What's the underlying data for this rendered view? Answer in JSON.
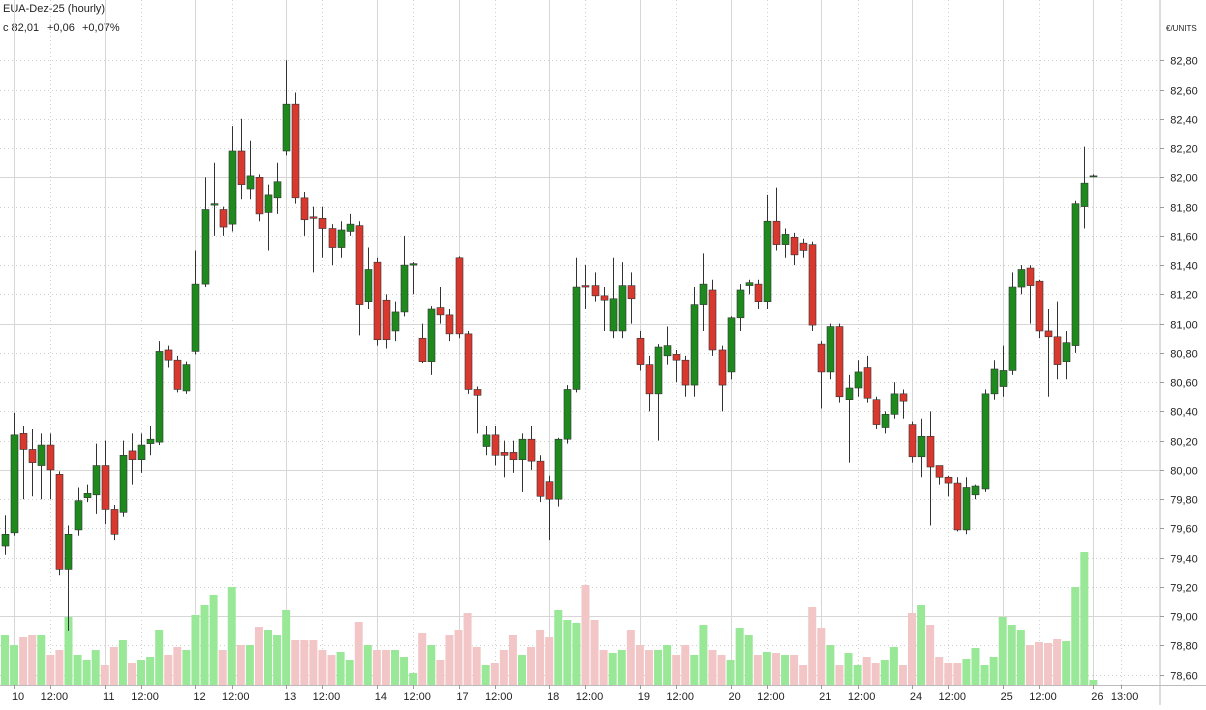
{
  "chart_data": {
    "type": "candlestick",
    "title": "EUA-Dez-25 (hourly)",
    "last_label": "c 82,01",
    "change_label": "+0,06",
    "change_pct_label": "+0,07%",
    "unit_label": "€/UNITS",
    "up_color": "#1e8a1e",
    "down_color": "#d9382e",
    "volume_up_color": "#98e898",
    "volume_down_color": "#f2c6c6",
    "change_color": "#2aa52a",
    "grid": true,
    "categories": [
      null,
      "10",
      null,
      null,
      null,
      "12:00",
      null,
      null,
      null,
      null,
      null,
      "11",
      null,
      null,
      null,
      "12:00",
      null,
      null,
      null,
      null,
      null,
      "12",
      null,
      null,
      null,
      "12:00",
      null,
      null,
      null,
      null,
      null,
      "13",
      null,
      null,
      null,
      "12:00",
      null,
      null,
      null,
      null,
      null,
      "14",
      null,
      null,
      null,
      "12:00",
      null,
      null,
      null,
      null,
      "17",
      null,
      null,
      null,
      "12:00",
      null,
      null,
      null,
      null,
      null,
      "18",
      null,
      null,
      null,
      "12:00",
      null,
      null,
      null,
      null,
      null,
      "19",
      null,
      null,
      null,
      "12:00",
      null,
      null,
      null,
      null,
      null,
      "20",
      null,
      null,
      null,
      "12:00",
      null,
      null,
      null,
      null,
      null,
      "21",
      null,
      null,
      null,
      "12:00",
      null,
      null,
      null,
      null,
      null,
      "24",
      null,
      null,
      null,
      "12:00",
      null,
      null,
      null,
      null,
      null,
      "25",
      null,
      null,
      null,
      "12:00",
      null,
      null,
      null,
      null,
      null,
      "26",
      null,
      null,
      "13:00"
    ],
    "open": [
      79.48,
      79.57,
      80.25,
      80.14,
      80.03,
      80.17,
      79.97,
      79.32,
      79.59,
      79.81,
      79.83,
      80.03,
      79.73,
      79.71,
      80.13,
      80.07,
      80.18,
      80.19,
      80.82,
      80.75,
      80.54,
      80.81,
      81.27,
      81.81,
      81.78,
      81.68,
      82.18,
      81.92,
      82.0,
      81.76,
      81.86,
      82.18,
      82.5,
      81.86,
      81.73,
      81.72,
      81.65,
      81.52,
      81.63,
      81.67,
      81.15,
      81.42,
      81.16,
      80.95,
      81.08,
      81.4,
      80.9,
      80.74,
      81.11,
      81.06,
      81.45,
      80.93,
      80.55,
      80.16,
      80.24,
      80.12,
      80.12,
      80.07,
      80.21,
      80.06,
      79.92,
      79.8,
      80.21,
      80.55,
      81.26,
      81.26,
      81.19,
      80.95,
      80.95,
      81.26,
      80.9,
      80.72,
      80.52,
      80.78,
      80.79,
      80.75,
      80.58,
      81.13,
      81.23,
      80.82,
      80.67,
      81.04,
      81.26,
      81.27,
      81.15,
      81.7,
      81.54,
      81.59,
      81.55,
      81.54,
      80.86,
      80.67,
      80.98,
      80.48,
      80.56,
      80.7,
      80.48,
      80.29,
      80.38,
      80.52,
      80.31,
      80.09,
      80.23,
      80.03,
      79.95,
      79.91,
      79.59,
      79.83,
      79.87,
      80.52,
      80.57,
      80.68,
      81.25,
      81.38,
      81.29,
      80.95,
      80.91,
      80.74,
      80.85,
      81.8,
      82.01,
      null,
      null,
      null
    ],
    "high": [
      79.69,
      80.39,
      80.3,
      80.28,
      80.25,
      80.25,
      79.99,
      79.62,
      79.88,
      79.9,
      80.18,
      80.2,
      79.76,
      80.2,
      80.25,
      80.25,
      80.3,
      80.88,
      80.85,
      80.78,
      80.74,
      81.5,
      82.0,
      82.1,
      81.8,
      82.35,
      82.4,
      82.25,
      82.02,
      81.95,
      82.1,
      82.8,
      82.58,
      81.9,
      81.8,
      81.8,
      81.68,
      81.7,
      81.75,
      81.7,
      81.52,
      81.45,
      81.2,
      81.15,
      81.6,
      81.42,
      81.0,
      81.12,
      81.25,
      81.1,
      81.46,
      80.95,
      80.57,
      80.3,
      80.3,
      80.2,
      80.2,
      80.25,
      80.3,
      80.1,
      79.96,
      80.22,
      80.58,
      81.45,
      81.4,
      81.35,
      81.25,
      81.45,
      81.42,
      81.35,
      80.95,
      80.78,
      80.86,
      80.98,
      80.82,
      80.78,
      81.25,
      81.48,
      81.3,
      80.85,
      81.05,
      81.27,
      81.3,
      81.3,
      81.88,
      81.93,
      81.65,
      81.62,
      81.58,
      81.56,
      80.88,
      81.0,
      81.0,
      80.65,
      80.75,
      80.78,
      80.5,
      80.4,
      80.6,
      80.55,
      80.33,
      80.35,
      80.4,
      80.0,
      79.96,
      79.95,
      79.95,
      79.9,
      80.55,
      80.75,
      80.85,
      81.35,
      81.4,
      81.4,
      81.3,
      81.1,
      81.15,
      80.95,
      81.84,
      82.21,
      82.02,
      null,
      null,
      null
    ],
    "low": [
      79.42,
      79.55,
      79.8,
      79.82,
      79.8,
      79.8,
      79.28,
      78.9,
      79.55,
      79.78,
      79.7,
      79.63,
      79.52,
      79.68,
      79.9,
      79.98,
      80.1,
      80.17,
      80.7,
      80.53,
      80.52,
      80.79,
      81.25,
      81.6,
      81.6,
      81.63,
      81.85,
      81.85,
      81.7,
      81.5,
      81.75,
      82.15,
      81.82,
      81.6,
      81.35,
      81.45,
      81.4,
      81.45,
      81.6,
      80.92,
      81.1,
      80.85,
      80.83,
      80.88,
      81.05,
      81.2,
      80.73,
      80.65,
      81.0,
      80.88,
      80.9,
      80.52,
      80.25,
      80.1,
      80.03,
      79.95,
      79.98,
      79.85,
      80.0,
      79.78,
      79.52,
      79.75,
      80.18,
      80.53,
      81.1,
      81.15,
      80.95,
      80.9,
      80.9,
      81.0,
      80.68,
      80.4,
      80.2,
      80.72,
      80.6,
      80.5,
      80.5,
      80.95,
      80.78,
      80.4,
      80.62,
      80.95,
      81.2,
      81.1,
      81.1,
      81.5,
      81.45,
      81.4,
      81.45,
      80.95,
      80.42,
      80.62,
      80.46,
      80.05,
      80.5,
      80.46,
      80.28,
      80.25,
      80.35,
      80.35,
      80.05,
      79.95,
      79.62,
      79.9,
      79.82,
      79.58,
      79.56,
      79.8,
      79.85,
      80.48,
      80.5,
      80.65,
      81.2,
      81.0,
      80.9,
      80.5,
      80.62,
      80.62,
      80.8,
      81.65,
      82.0,
      null,
      null,
      null
    ],
    "close": [
      79.56,
      80.24,
      80.14,
      80.05,
      80.17,
      80.0,
      79.32,
      79.56,
      79.79,
      79.84,
      80.03,
      79.73,
      79.56,
      80.1,
      80.07,
      80.17,
      80.21,
      80.81,
      80.75,
      80.55,
      80.72,
      81.27,
      81.78,
      81.82,
      81.66,
      82.18,
      81.95,
      82.01,
      81.75,
      81.88,
      81.97,
      82.5,
      81.86,
      81.71,
      81.72,
      81.65,
      81.52,
      81.64,
      81.68,
      81.13,
      81.37,
      80.89,
      80.89,
      81.08,
      81.4,
      81.41,
      80.74,
      81.1,
      81.06,
      80.93,
      80.93,
      80.55,
      80.51,
      80.24,
      80.1,
      80.1,
      80.07,
      80.21,
      80.06,
      79.82,
      79.8,
      80.21,
      80.55,
      81.25,
      81.25,
      81.19,
      81.16,
      81.17,
      81.26,
      81.17,
      80.72,
      80.52,
      80.84,
      80.85,
      80.75,
      80.58,
      81.13,
      81.27,
      80.82,
      80.58,
      81.04,
      81.23,
      81.28,
      81.15,
      81.7,
      81.54,
      81.61,
      81.47,
      81.5,
      80.99,
      80.67,
      80.98,
      80.5,
      80.56,
      80.67,
      80.49,
      80.31,
      80.38,
      80.52,
      80.47,
      80.09,
      80.23,
      80.02,
      79.95,
      79.91,
      79.59,
      79.88,
      79.89,
      80.52,
      80.69,
      80.68,
      81.25,
      81.37,
      81.26,
      80.95,
      80.91,
      80.72,
      80.87,
      81.82,
      81.96,
      82.01,
      null,
      null,
      null
    ],
    "volume": [
      50,
      40,
      48,
      50,
      50,
      30,
      35,
      68,
      30,
      25,
      35,
      20,
      38,
      45,
      22,
      25,
      28,
      55,
      30,
      38,
      35,
      70,
      80,
      90,
      35,
      98,
      40,
      40,
      58,
      55,
      50,
      75,
      45,
      45,
      45,
      35,
      30,
      33,
      25,
      63,
      40,
      35,
      35,
      35,
      28,
      12,
      52,
      40,
      25,
      50,
      55,
      72,
      38,
      20,
      22,
      35,
      50,
      30,
      38,
      55,
      48,
      75,
      65,
      62,
      100,
      65,
      35,
      32,
      35,
      55,
      40,
      35,
      35,
      40,
      30,
      40,
      30,
      60,
      35,
      30,
      25,
      57,
      50,
      30,
      33,
      32,
      30,
      30,
      20,
      78,
      57,
      40,
      20,
      32,
      20,
      28,
      22,
      25,
      38,
      20,
      72,
      80,
      60,
      28,
      22,
      22,
      26,
      37,
      20,
      28,
      68,
      60,
      55,
      40,
      43,
      42,
      46,
      44,
      98,
      133,
      5,
      null,
      null,
      null
    ],
    "ylim": [
      78.53,
      83.13
    ],
    "yticks": [
      {
        "value": 78.6,
        "label": "78,60"
      },
      {
        "value": 78.8,
        "label": "78,80"
      },
      {
        "value": 79.0,
        "label": "79,00"
      },
      {
        "value": 79.2,
        "label": "79,20"
      },
      {
        "value": 79.4,
        "label": "79,40"
      },
      {
        "value": 79.6,
        "label": "79,60"
      },
      {
        "value": 79.8,
        "label": "79,80"
      },
      {
        "value": 80.0,
        "label": "80,00"
      },
      {
        "value": 80.2,
        "label": "80,20"
      },
      {
        "value": 80.4,
        "label": "80,40"
      },
      {
        "value": 80.6,
        "label": "80,60"
      },
      {
        "value": 80.8,
        "label": "80,80"
      },
      {
        "value": 81.0,
        "label": "81,00"
      },
      {
        "value": 81.2,
        "label": "81,20"
      },
      {
        "value": 81.4,
        "label": "81,40"
      },
      {
        "value": 81.6,
        "label": "81,60"
      },
      {
        "value": 81.8,
        "label": "81,80"
      },
      {
        "value": 82.0,
        "label": "82,00"
      },
      {
        "value": 82.2,
        "label": "82,20"
      },
      {
        "value": 82.4,
        "label": "82,40"
      },
      {
        "value": 82.6,
        "label": "82,60"
      },
      {
        "value": 82.8,
        "label": "82,80"
      }
    ]
  }
}
